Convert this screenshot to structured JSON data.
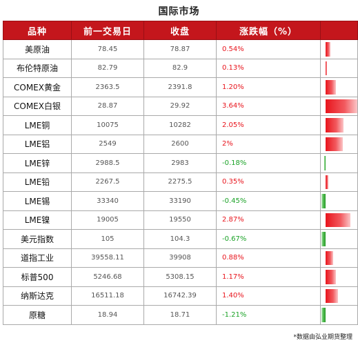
{
  "title": "国际市场",
  "headers": [
    "品种",
    "前一交易日",
    "收盘",
    "涨跌幅（%）",
    ""
  ],
  "rows": [
    {
      "name": "美原油",
      "prev": "78.45",
      "close": "78.87",
      "change": "0.54%",
      "value": 0.54
    },
    {
      "name": "布伦特原油",
      "prev": "82.79",
      "close": "82.9",
      "change": "0.13%",
      "value": 0.13
    },
    {
      "name": "COMEX黄金",
      "prev": "2363.5",
      "close": "2391.8",
      "change": "1.20%",
      "value": 1.2
    },
    {
      "name": "COMEX白银",
      "prev": "28.87",
      "close": "29.92",
      "change": "3.64%",
      "value": 3.64
    },
    {
      "name": "LME铜",
      "prev": "10075",
      "close": "10282",
      "change": "2.05%",
      "value": 2.05
    },
    {
      "name": "LME铝",
      "prev": "2549",
      "close": "2600",
      "change": "2%",
      "value": 2.0
    },
    {
      "name": "LME锌",
      "prev": "2988.5",
      "close": "2983",
      "change": "-0.18%",
      "value": -0.18
    },
    {
      "name": "LME铅",
      "prev": "2267.5",
      "close": "2275.5",
      "change": "0.35%",
      "value": 0.35
    },
    {
      "name": "LME锡",
      "prev": "33340",
      "close": "33190",
      "change": "-0.45%",
      "value": -0.45
    },
    {
      "name": "LME镍",
      "prev": "19005",
      "close": "19550",
      "change": "2.87%",
      "value": 2.87
    },
    {
      "name": "美元指数",
      "prev": "105",
      "close": "104.3",
      "change": "-0.67%",
      "value": -0.67
    },
    {
      "name": "道指工业",
      "prev": "39558.11",
      "close": "39908",
      "change": "0.88%",
      "value": 0.88
    },
    {
      "name": "标普500",
      "prev": "5246.68",
      "close": "5308.15",
      "change": "1.17%",
      "value": 1.17
    },
    {
      "name": "纳斯达克",
      "prev": "16511.18",
      "close": "16742.39",
      "change": "1.40%",
      "value": 1.4
    },
    {
      "name": "原糖",
      "prev": "18.94",
      "close": "18.71",
      "change": "-1.21%",
      "value": -1.21
    }
  ],
  "note": "*数据由弘业期货整理",
  "colors": {
    "header": "#c4161c",
    "up": "#e8141c",
    "down": "#1aa226"
  }
}
